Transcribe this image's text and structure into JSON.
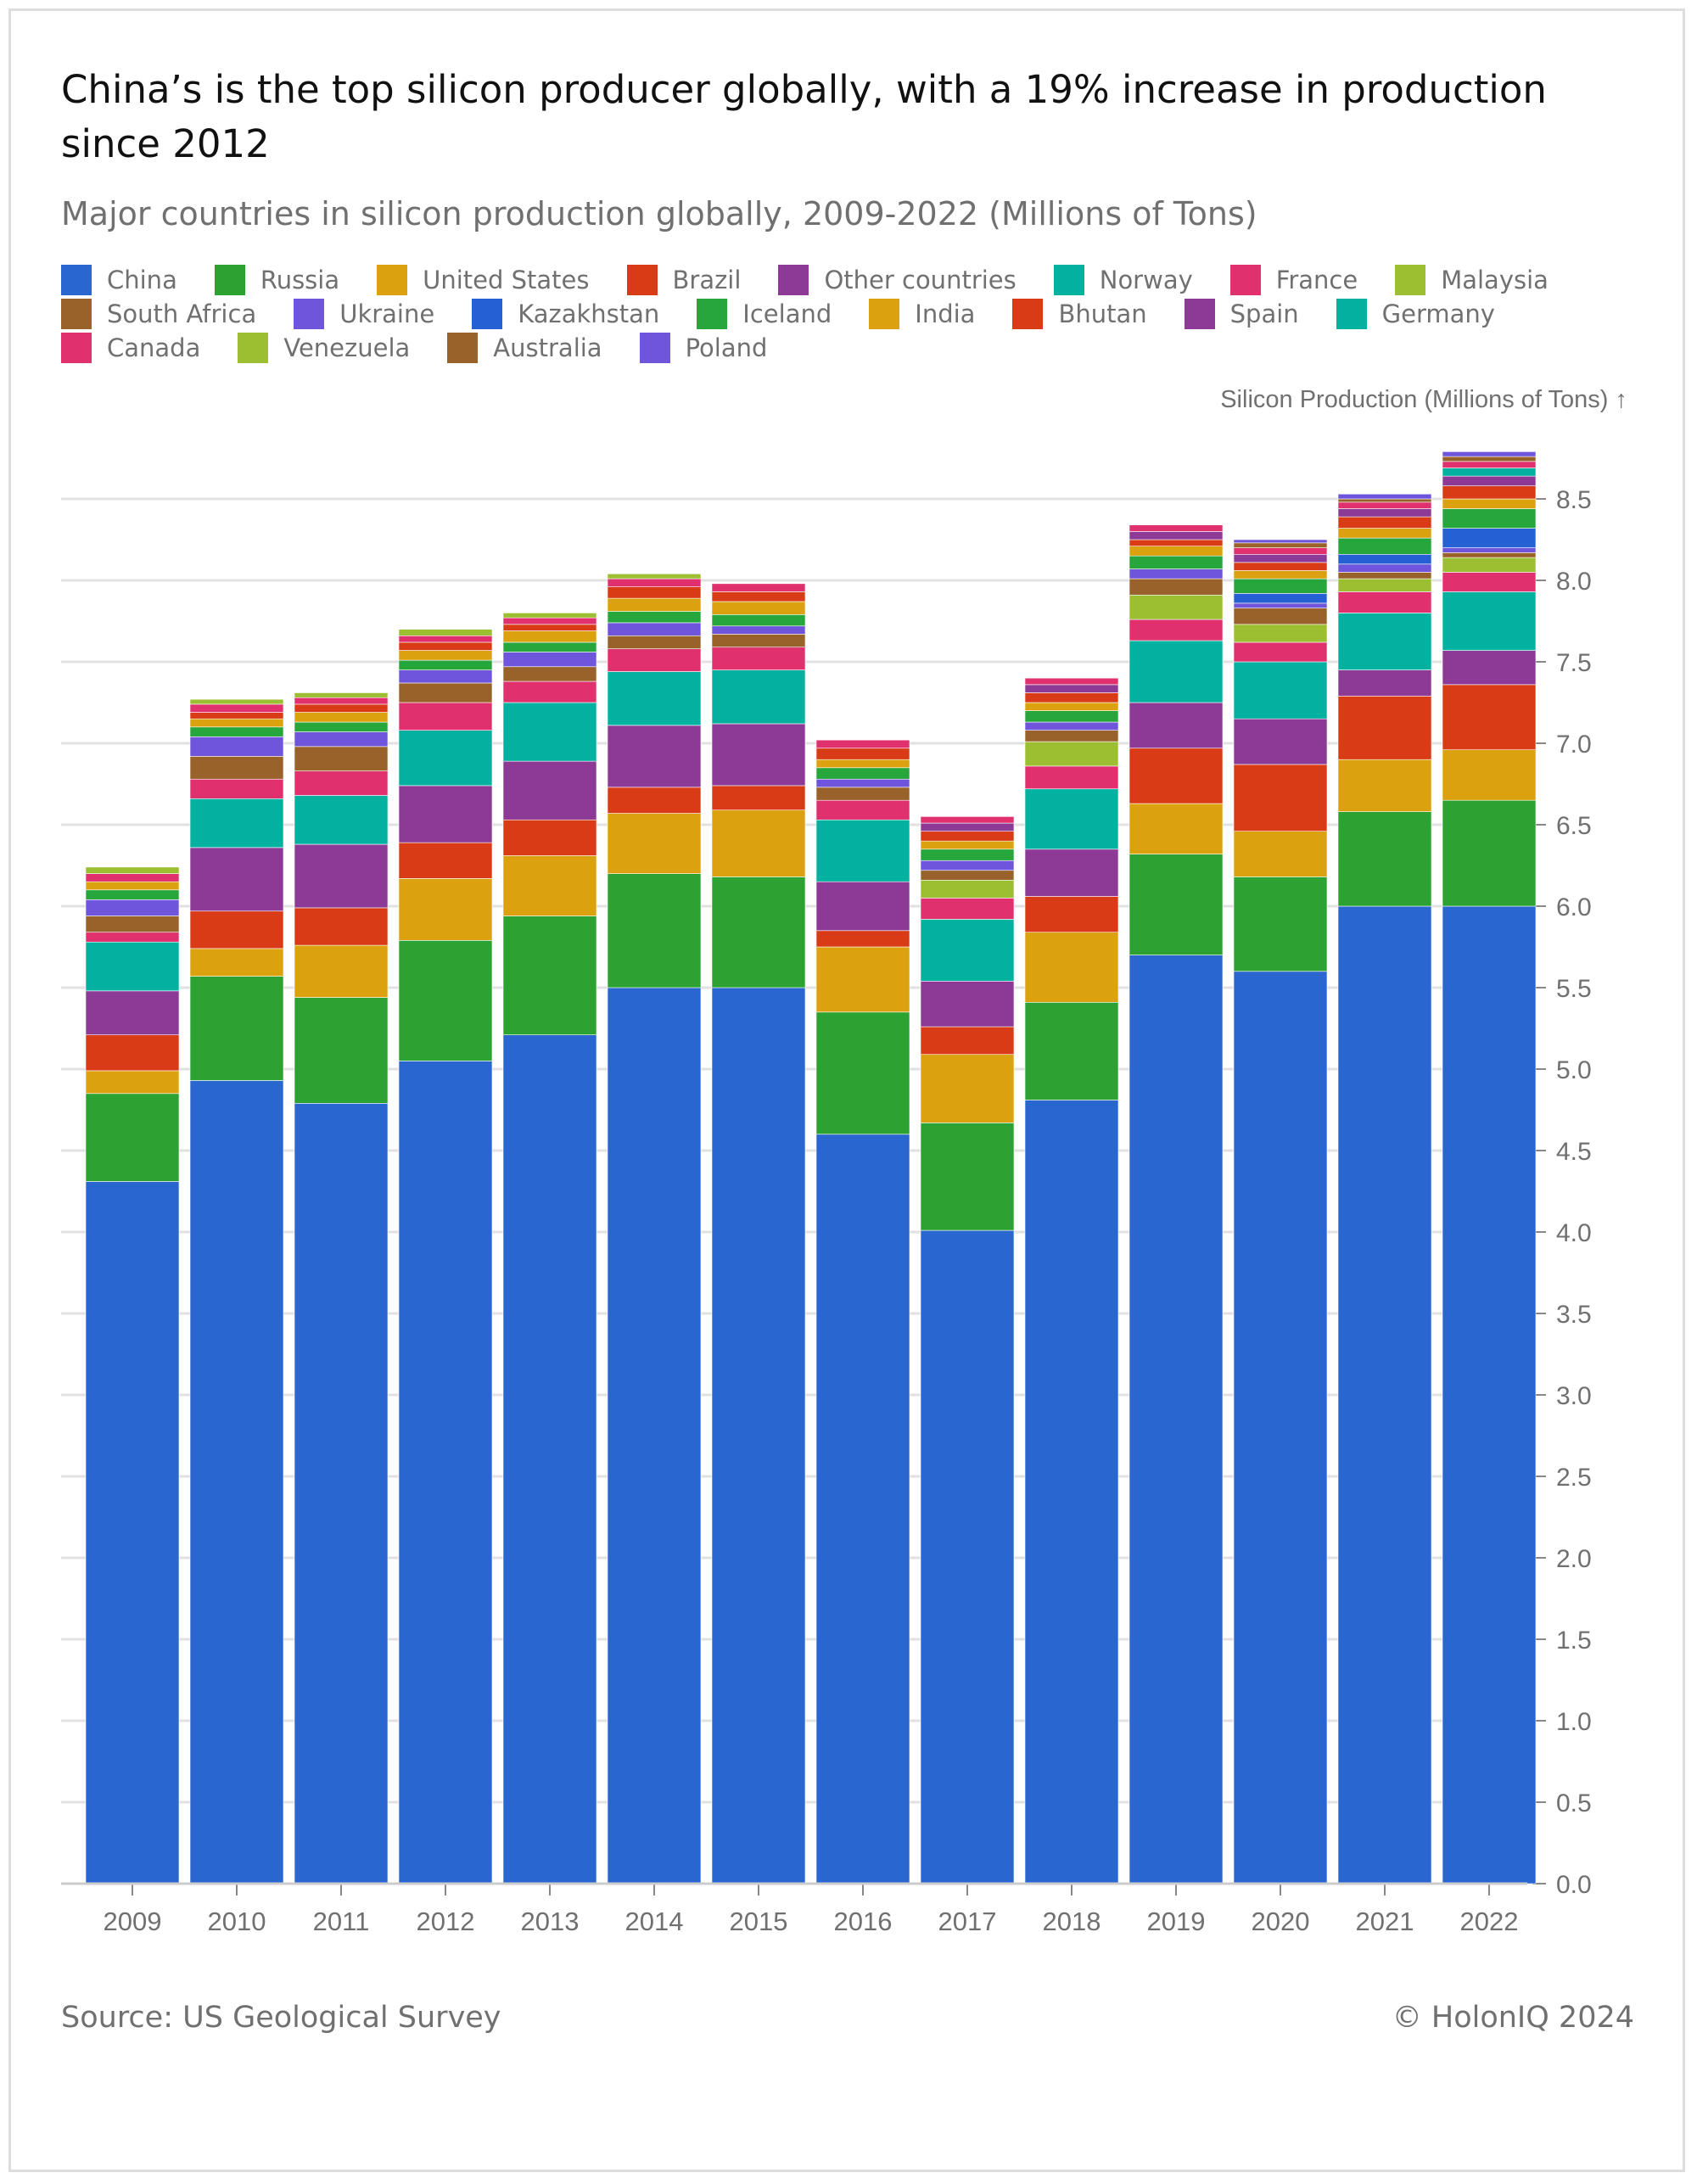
{
  "title": "China’s is the top silicon producer globally, with a 19% increase in production since 2012",
  "subtitle": "Major countries in silicon production globally, 2009-2022 (Millions of Tons)",
  "source": "Source: US Geological Survey",
  "copyright": "© HolonIQ 2024",
  "chart_data": {
    "type": "bar",
    "stacked": true,
    "ylabel": "Silicon Production (Millions of Tons) ↑",
    "ylim": [
      0,
      8.75
    ],
    "yticks": [
      "0.0",
      "0.5",
      "1.0",
      "1.5",
      "2.0",
      "2.5",
      "3.0",
      "3.5",
      "4.0",
      "4.5",
      "5.0",
      "5.5",
      "6.0",
      "6.5",
      "7.0",
      "7.5",
      "8.0",
      "8.5"
    ],
    "grid": true,
    "legend_position": "top",
    "categories": [
      "2009",
      "2010",
      "2011",
      "2012",
      "2013",
      "2014",
      "2015",
      "2016",
      "2017",
      "2018",
      "2019",
      "2020",
      "2021",
      "2022"
    ],
    "series": [
      {
        "name": "China",
        "color": "#2966cf",
        "values": [
          4.31,
          4.93,
          4.79,
          5.05,
          5.21,
          5.5,
          5.5,
          4.6,
          4.01,
          4.81,
          5.7,
          5.6,
          6.0,
          6.0
        ]
      },
      {
        "name": "Russia",
        "color": "#2ca232",
        "values": [
          0.54,
          0.64,
          0.65,
          0.74,
          0.73,
          0.7,
          0.68,
          0.75,
          0.66,
          0.6,
          0.62,
          0.58,
          0.58,
          0.65
        ]
      },
      {
        "name": "United States",
        "color": "#dba10f",
        "values": [
          0.14,
          0.17,
          0.32,
          0.38,
          0.37,
          0.37,
          0.41,
          0.4,
          0.42,
          0.43,
          0.31,
          0.28,
          0.32,
          0.31
        ]
      },
      {
        "name": "Brazil",
        "color": "#d83b15",
        "values": [
          0.22,
          0.23,
          0.23,
          0.22,
          0.22,
          0.16,
          0.15,
          0.1,
          0.17,
          0.22,
          0.34,
          0.41,
          0.39,
          0.4
        ]
      },
      {
        "name": "Other countries",
        "color": "#8d3a97",
        "values": [
          0.27,
          0.39,
          0.39,
          0.35,
          0.36,
          0.38,
          0.38,
          0.3,
          0.28,
          0.29,
          0.28,
          0.28,
          0.16,
          0.21
        ]
      },
      {
        "name": "Norway",
        "color": "#03b1a1",
        "values": [
          0.3,
          0.3,
          0.3,
          0.34,
          0.36,
          0.33,
          0.33,
          0.38,
          0.38,
          0.37,
          0.38,
          0.35,
          0.35,
          0.36
        ]
      },
      {
        "name": "France",
        "color": "#e0306e",
        "values": [
          0.06,
          0.12,
          0.15,
          0.17,
          0.13,
          0.14,
          0.14,
          0.12,
          0.13,
          0.14,
          0.13,
          0.12,
          0.13,
          0.12
        ]
      },
      {
        "name": "Malaysia",
        "color": "#9bbf30",
        "values": [
          0,
          0,
          0,
          0,
          0,
          0,
          0,
          0,
          0.11,
          0.15,
          0.15,
          0.11,
          0.08,
          0.09
        ]
      },
      {
        "name": "South Africa",
        "color": "#99622b",
        "values": [
          0.1,
          0.14,
          0.15,
          0.12,
          0.09,
          0.08,
          0.08,
          0.08,
          0.06,
          0.07,
          0.1,
          0.1,
          0.04,
          0.03
        ]
      },
      {
        "name": "Ukraine",
        "color": "#6f55dc",
        "values": [
          0.1,
          0.12,
          0.09,
          0.08,
          0.09,
          0.08,
          0.05,
          0.05,
          0.06,
          0.05,
          0.06,
          0.03,
          0.05,
          0.03
        ]
      },
      {
        "name": "Kazakhstan",
        "color": "#2561d4",
        "values": [
          0,
          0,
          0,
          0,
          0,
          0,
          0,
          0,
          0,
          0,
          0,
          0.06,
          0.06,
          0.12
        ]
      },
      {
        "name": "Iceland",
        "color": "#26a63b",
        "values": [
          0.06,
          0.06,
          0.06,
          0.06,
          0.06,
          0.07,
          0.07,
          0.07,
          0.07,
          0.07,
          0.08,
          0.09,
          0.1,
          0.12
        ]
      },
      {
        "name": "India",
        "color": "#dba10f",
        "values": [
          0.05,
          0.05,
          0.06,
          0.06,
          0.07,
          0.08,
          0.08,
          0.05,
          0.05,
          0.05,
          0.06,
          0.05,
          0.06,
          0.06
        ]
      },
      {
        "name": "Bhutan",
        "color": "#d83b15",
        "values": [
          0,
          0.04,
          0.05,
          0.05,
          0.04,
          0.07,
          0.06,
          0.07,
          0.06,
          0.06,
          0.04,
          0.05,
          0.07,
          0.08
        ]
      },
      {
        "name": "Spain",
        "color": "#8d3a97",
        "values": [
          0,
          0,
          0,
          0,
          0,
          0,
          0,
          0,
          0.05,
          0.05,
          0.05,
          0.05,
          0.05,
          0.06
        ]
      },
      {
        "name": "Germany",
        "color": "#03b1a1",
        "values": [
          0,
          0,
          0,
          0,
          0,
          0,
          0,
          0,
          0,
          0,
          0,
          0,
          0,
          0.05
        ]
      },
      {
        "name": "Canada",
        "color": "#e0306e",
        "values": [
          0.05,
          0.05,
          0.04,
          0.04,
          0.04,
          0.05,
          0.05,
          0.05,
          0.04,
          0.04,
          0.04,
          0.04,
          0.04,
          0.04
        ]
      },
      {
        "name": "Venezuela",
        "color": "#9bbf30",
        "values": [
          0.04,
          0.03,
          0.03,
          0.04,
          0.03,
          0.03,
          0,
          0,
          0,
          0,
          0,
          0,
          0,
          0
        ]
      },
      {
        "name": "Australia",
        "color": "#99622b",
        "values": [
          0,
          0,
          0,
          0,
          0,
          0,
          0,
          0,
          0,
          0,
          0,
          0.03,
          0.02,
          0.03
        ]
      },
      {
        "name": "Poland",
        "color": "#6f55dc",
        "values": [
          0,
          0,
          0,
          0,
          0,
          0,
          0,
          0,
          0,
          0,
          0,
          0.02,
          0.03,
          0.03
        ]
      }
    ]
  }
}
